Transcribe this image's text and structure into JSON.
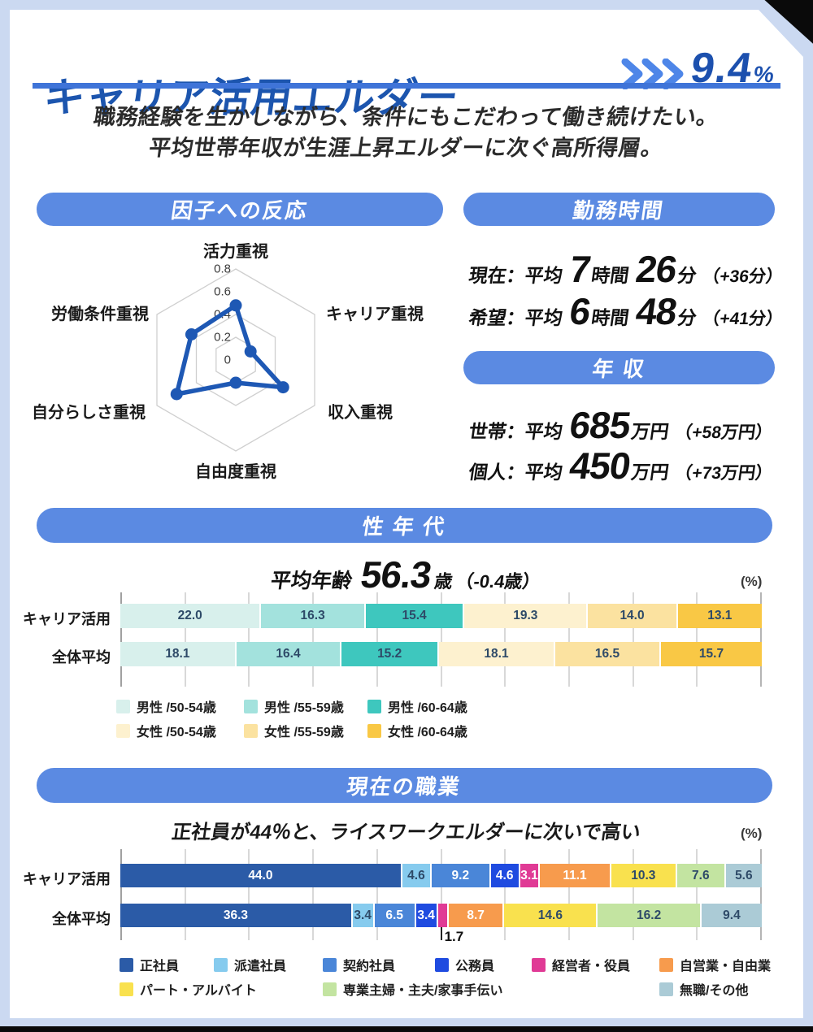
{
  "header": {
    "title": "キャリア活用エルダー",
    "percent": "9.4",
    "percent_unit": "%",
    "subtitle_line1": "職務経験を生かしながら、条件にもこだわって働き続けたい。",
    "subtitle_line2": "平均世帯年収が生涯上昇エルダーに次ぐ高所得層。"
  },
  "colors": {
    "background": "#cbd9f1",
    "card": "#ffffff",
    "title_blue": "#1c55ae",
    "pill_blue": "#5b8ae2",
    "rule_blue": "#3f74d8",
    "chevron_blue": "#4e86e8",
    "navy_value_text": "#2e4a68",
    "corner_black": "#0a0a0a"
  },
  "sections": {
    "factors": {
      "heading": "因子への反応"
    },
    "work_hours": {
      "heading": "勤務時間",
      "rows": [
        {
          "label": "現在：平均",
          "hours": "7",
          "hours_unit": "時間",
          "minutes": "26",
          "minutes_unit": "分",
          "diff": "（+36分）"
        },
        {
          "label": "希望：平均",
          "hours": "6",
          "hours_unit": "時間",
          "minutes": "48",
          "minutes_unit": "分",
          "diff": "（+41分）"
        }
      ]
    },
    "income": {
      "heading": "年 収",
      "rows": [
        {
          "label": "世帯：平均",
          "value": "685",
          "unit": "万円",
          "diff": "（+58万円）"
        },
        {
          "label": "個人：平均",
          "value": "450",
          "unit": "万円",
          "diff": "（+73万円）"
        }
      ]
    },
    "gender_age": {
      "heading": "性 年 代",
      "average_age_label": "平均年齢",
      "average_age_value": "56.3",
      "average_age_unit": "歳",
      "average_age_diff": "（-0.4歳）",
      "unit_label": "(%)"
    },
    "occupation": {
      "heading": "現在の職業",
      "subtitle": "正社員が44％と、ライスワークエルダーに次いで高い",
      "unit_label": "(%)"
    }
  },
  "chart_data": [
    {
      "id": "factor-radar",
      "type": "radar",
      "title": "因子への反応",
      "categories": [
        "活力重視",
        "キャリア重視",
        "収入重視",
        "自由度重視",
        "自分らしさ重視",
        "労働条件重視"
      ],
      "values": [
        0.48,
        0.15,
        0.48,
        0.2,
        0.6,
        0.45
      ],
      "axis_ticks": [
        "0",
        "0.2",
        "0.4",
        "0.6",
        "0.8"
      ],
      "grid_rings": [
        0.2,
        0.4,
        0.8
      ],
      "max": 0.8,
      "line_color": "#1e58b4",
      "grid_color": "#cfcfcf",
      "legend_position": "none",
      "grid": true
    },
    {
      "id": "gender-age-bars",
      "type": "bar",
      "subtype": "stacked-horizontal",
      "title": "性 年 代",
      "categories": [
        "キャリア活用",
        "全体平均"
      ],
      "xlim": [
        0,
        100
      ],
      "grid_step": 10,
      "series": [
        {
          "name": "男性 /50-54歳",
          "color": "#d8f0ec",
          "label_color": "#2e4a68",
          "values": [
            22.0,
            18.1
          ]
        },
        {
          "name": "男性 /55-59歳",
          "color": "#a3e2dd",
          "label_color": "#2e4a68",
          "values": [
            16.3,
            16.4
          ]
        },
        {
          "name": "男性 /60-64歳",
          "color": "#3ec7be",
          "label_color": "#2e4a68",
          "values": [
            15.4,
            15.2
          ]
        },
        {
          "name": "女性 /50-54歳",
          "color": "#fdf1cf",
          "label_color": "#2e4a68",
          "values": [
            19.3,
            18.1
          ]
        },
        {
          "name": "女性 /55-59歳",
          "color": "#fbe2a0",
          "label_color": "#2e4a68",
          "values": [
            14.0,
            16.5
          ]
        },
        {
          "name": "女性 /60-64歳",
          "color": "#f9c845",
          "label_color": "#2e4a68",
          "values": [
            13.1,
            15.7
          ]
        }
      ]
    },
    {
      "id": "occupation-bars",
      "type": "bar",
      "subtype": "stacked-horizontal",
      "title": "現在の職業",
      "categories": [
        "キャリア活用",
        "全体平均"
      ],
      "xlim": [
        0,
        100
      ],
      "grid_step": 10,
      "series": [
        {
          "name": "正社員",
          "color": "#2b5ba7",
          "label_color": "#ffffff",
          "values": [
            44.0,
            36.3
          ]
        },
        {
          "name": "派遣社員",
          "color": "#86cbee",
          "label_color": "#2e4a68",
          "values": [
            4.6,
            3.4
          ]
        },
        {
          "name": "契約社員",
          "color": "#4a86d8",
          "label_color": "#ffffff",
          "values": [
            9.2,
            6.5
          ]
        },
        {
          "name": "公務員",
          "color": "#1f4be0",
          "label_color": "#ffffff",
          "values": [
            4.6,
            3.4
          ]
        },
        {
          "name": "経営者・役員",
          "color": "#e03a95",
          "label_color": "#ffffff",
          "values": [
            3.1,
            1.7
          ]
        },
        {
          "name": "自営業・自由業",
          "color": "#f79b4d",
          "label_color": "#ffffff",
          "values": [
            11.1,
            8.7
          ]
        },
        {
          "name": "パート・アルバイト",
          "color": "#f9e14e",
          "label_color": "#2e4a68",
          "values": [
            10.3,
            14.6
          ]
        },
        {
          "name": "専業主婦・主夫/家事手伝い",
          "color": "#c3e4a1",
          "label_color": "#2e4a68",
          "values": [
            7.6,
            16.2
          ]
        },
        {
          "name": "無職/その他",
          "color": "#abcbd6",
          "label_color": "#2e4a68",
          "values": [
            5.6,
            9.4
          ]
        }
      ]
    }
  ]
}
